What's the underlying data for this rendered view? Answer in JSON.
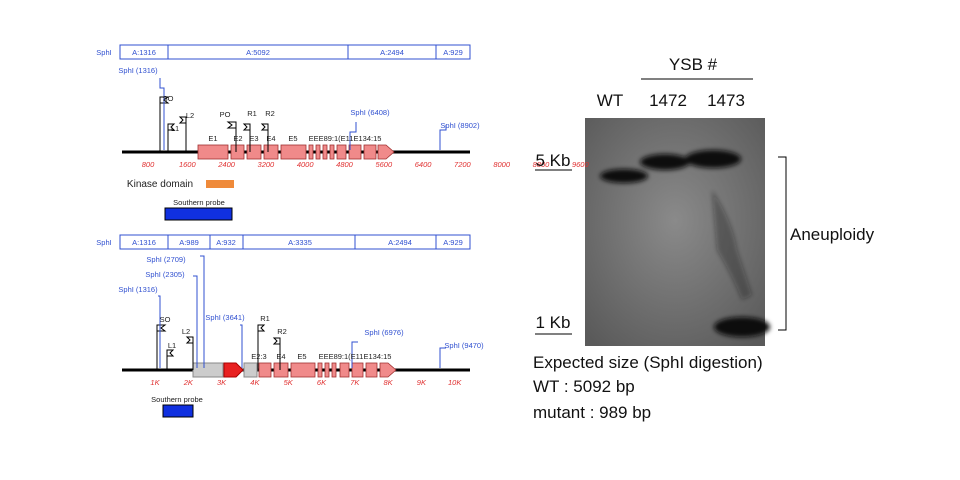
{
  "map_top": {
    "fragments": [
      "SphI",
      "A:1316",
      "A:5092",
      "A:2494",
      "A:929"
    ],
    "sites": [
      "SphI (1316)",
      "SphI (6408)",
      "SphI (8902)"
    ],
    "primers": [
      "SO",
      "L1",
      "L2",
      "PO",
      "R1",
      "R2"
    ],
    "exons": [
      "E1",
      "E2",
      "E3",
      "E4",
      "E5",
      "EEE89:1(E11E134:15"
    ],
    "axis": [
      800,
      1600,
      2400,
      3200,
      4000,
      4800,
      5600,
      6400,
      7200,
      8000,
      8800,
      9600
    ],
    "kinase": "Kinase domain",
    "probe": "Southern probe"
  },
  "map_bottom": {
    "fragments": [
      "SphI",
      "A:1316",
      "A:989",
      "A:932",
      "A:3335",
      "A:2494",
      "A:929"
    ],
    "sites": [
      "SphI (2709)",
      "SphI (2305)",
      "SphI (1316)",
      "SphI (3641)",
      "SphI (6976)",
      "SphI (9470)"
    ],
    "primers": [
      "SO",
      "L1",
      "L2",
      "R1",
      "R2"
    ],
    "exons": [
      "E2:3",
      "E4",
      "E5",
      "EEE89:1(E11E134:15"
    ],
    "axis": [
      "1K",
      "2K",
      "3K",
      "4K",
      "5K",
      "6K",
      "7K",
      "8K",
      "9K",
      "10K"
    ],
    "probe": "Southern probe"
  },
  "blot": {
    "group": "YSB #",
    "lanes": [
      "WT",
      "1472",
      "1473"
    ],
    "markers": [
      "5 Kb",
      "1 Kb"
    ],
    "bracket": "Aneuploidy",
    "notes": [
      "Expected size (SphI digestion)",
      "WT : 5092 bp",
      "mutant : 989 bp"
    ]
  }
}
